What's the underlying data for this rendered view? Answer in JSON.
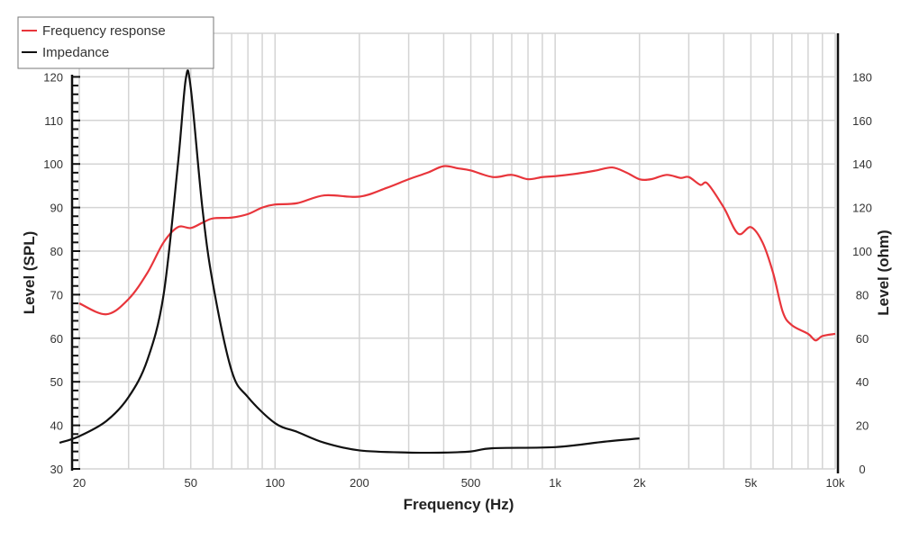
{
  "chart_data": {
    "type": "line",
    "title": "",
    "xlabel": "Frequency (Hz)",
    "ylabel": "Level (SPL)",
    "y2label": "Level (ohm)",
    "xscale": "log",
    "xlim": [
      20,
      10000
    ],
    "ylim": [
      30,
      130
    ],
    "y2lim": [
      0,
      200
    ],
    "xticks": [
      {
        "v": 20,
        "label": "20"
      },
      {
        "v": 50,
        "label": "50"
      },
      {
        "v": 100,
        "label": "100"
      },
      {
        "v": 200,
        "label": "200"
      },
      {
        "v": 500,
        "label": "500"
      },
      {
        "v": 1000,
        "label": "1k"
      },
      {
        "v": 2000,
        "label": "2k"
      },
      {
        "v": 5000,
        "label": "5k"
      },
      {
        "v": 10000,
        "label": "10k"
      }
    ],
    "yticks": [
      30,
      40,
      50,
      60,
      70,
      80,
      90,
      100,
      110,
      120
    ],
    "y2ticks": [
      0,
      20,
      40,
      60,
      80,
      100,
      120,
      140,
      160,
      180
    ],
    "grid": true,
    "legend_position": "top-left",
    "colors": {
      "frequency_response": "#e8353b",
      "impedance": "#111111",
      "grid": "#d4d4d4"
    },
    "series": [
      {
        "name": "Frequency response",
        "axis": "left",
        "x": [
          20,
          25,
          30,
          35,
          40,
          45,
          50,
          55,
          60,
          70,
          80,
          90,
          100,
          120,
          150,
          200,
          250,
          300,
          350,
          400,
          450,
          500,
          600,
          700,
          800,
          900,
          1000,
          1200,
          1400,
          1600,
          1800,
          2000,
          2200,
          2500,
          2800,
          3000,
          3300,
          3500,
          4000,
          4500,
          5000,
          5500,
          6000,
          6500,
          7000,
          8000,
          8500,
          9000,
          10000
        ],
        "y": [
          68,
          65.5,
          69,
          75,
          82,
          85.5,
          85.3,
          86.5,
          87.5,
          87.7,
          88.5,
          90,
          90.7,
          91,
          92.8,
          92.5,
          94.5,
          96.5,
          98,
          99.5,
          99,
          98.5,
          97,
          97.5,
          96.5,
          97,
          97.2,
          97.8,
          98.5,
          99.2,
          98,
          96.5,
          96.5,
          97.5,
          96.8,
          97,
          95.2,
          95.5,
          90,
          84,
          85.5,
          82,
          75,
          66,
          63,
          61,
          59.5,
          60.5,
          61
        ]
      },
      {
        "name": "Impedance",
        "axis": "right",
        "x": [
          17,
          20,
          25,
          30,
          35,
          40,
          45,
          48,
          50,
          55,
          60,
          70,
          80,
          100,
          120,
          150,
          200,
          300,
          400,
          500,
          600,
          1000,
          1500,
          2000
        ],
        "y": [
          12,
          15,
          22,
          33,
          50,
          80,
          140,
          179,
          175,
          120,
          85,
          45,
          33,
          21,
          17,
          12,
          8.5,
          7.5,
          7.5,
          8,
          9.5,
          10,
          12.5,
          14
        ]
      }
    ]
  }
}
